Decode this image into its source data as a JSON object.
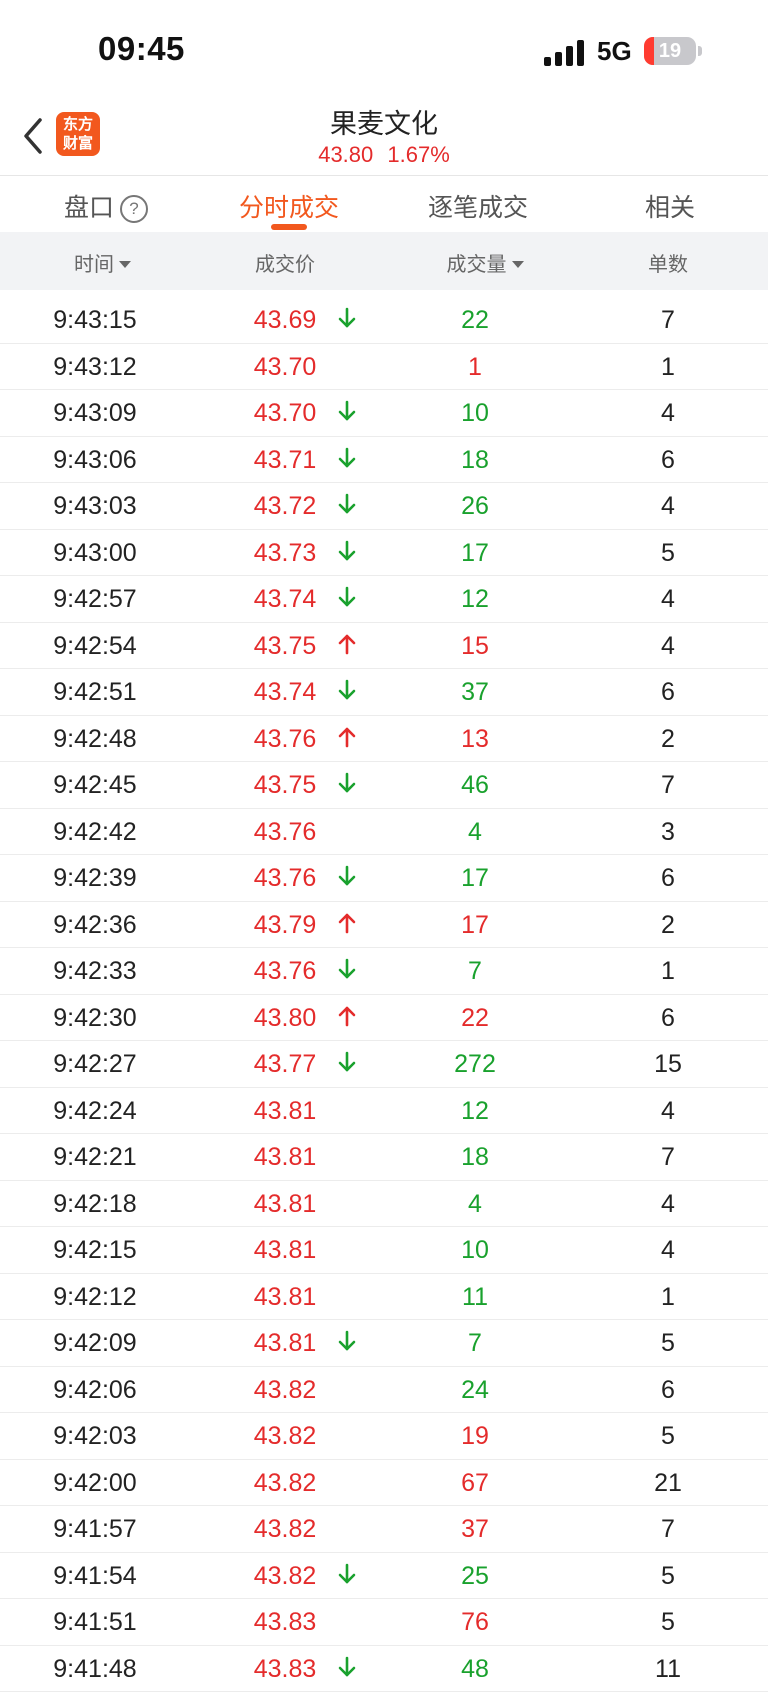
{
  "status_bar": {
    "time": "09:45",
    "network": "5G",
    "battery": "19",
    "battery_level": 0.19
  },
  "header": {
    "title": "果麦文化",
    "price": "43.80",
    "change_pct": "1.67%",
    "logo_line1": "东方",
    "logo_line2": "财富"
  },
  "tabs": [
    {
      "label": "盘口",
      "active": false
    },
    {
      "label": "分时成交",
      "active": true
    },
    {
      "label": "逐笔成交",
      "active": false
    },
    {
      "label": "相关",
      "active": false
    }
  ],
  "columns": [
    "时间",
    "成交价",
    "成交量",
    "单数"
  ],
  "colors": {
    "up": "#e42b2b",
    "down": "#19a12d",
    "accent": "#f2581e"
  },
  "trades": [
    {
      "time": "9:43:15",
      "price": "43.69",
      "dir": "down",
      "volume": "22",
      "count": "7"
    },
    {
      "time": "9:43:12",
      "price": "43.70",
      "dir": "",
      "volume": "1",
      "vol_color": "red",
      "count": "1"
    },
    {
      "time": "9:43:09",
      "price": "43.70",
      "dir": "down",
      "volume": "10",
      "count": "4"
    },
    {
      "time": "9:43:06",
      "price": "43.71",
      "dir": "down",
      "volume": "18",
      "count": "6"
    },
    {
      "time": "9:43:03",
      "price": "43.72",
      "dir": "down",
      "volume": "26",
      "count": "4"
    },
    {
      "time": "9:43:00",
      "price": "43.73",
      "dir": "down",
      "volume": "17",
      "count": "5"
    },
    {
      "time": "9:42:57",
      "price": "43.74",
      "dir": "down",
      "volume": "12",
      "count": "4"
    },
    {
      "time": "9:42:54",
      "price": "43.75",
      "dir": "up",
      "volume": "15",
      "count": "4"
    },
    {
      "time": "9:42:51",
      "price": "43.74",
      "dir": "down",
      "volume": "37",
      "count": "6"
    },
    {
      "time": "9:42:48",
      "price": "43.76",
      "dir": "up",
      "volume": "13",
      "count": "2"
    },
    {
      "time": "9:42:45",
      "price": "43.75",
      "dir": "down",
      "volume": "46",
      "count": "7"
    },
    {
      "time": "9:42:42",
      "price": "43.76",
      "dir": "",
      "volume": "4",
      "vol_color": "green",
      "count": "3"
    },
    {
      "time": "9:42:39",
      "price": "43.76",
      "dir": "down",
      "volume": "17",
      "count": "6"
    },
    {
      "time": "9:42:36",
      "price": "43.79",
      "dir": "up",
      "volume": "17",
      "count": "2"
    },
    {
      "time": "9:42:33",
      "price": "43.76",
      "dir": "down",
      "volume": "7",
      "count": "1"
    },
    {
      "time": "9:42:30",
      "price": "43.80",
      "dir": "up",
      "volume": "22",
      "count": "6"
    },
    {
      "time": "9:42:27",
      "price": "43.77",
      "dir": "down",
      "volume": "272",
      "count": "15"
    },
    {
      "time": "9:42:24",
      "price": "43.81",
      "dir": "",
      "volume": "12",
      "vol_color": "green",
      "count": "4"
    },
    {
      "time": "9:42:21",
      "price": "43.81",
      "dir": "",
      "volume": "18",
      "vol_color": "green",
      "count": "7"
    },
    {
      "time": "9:42:18",
      "price": "43.81",
      "dir": "",
      "volume": "4",
      "vol_color": "green",
      "count": "4"
    },
    {
      "time": "9:42:15",
      "price": "43.81",
      "dir": "",
      "volume": "10",
      "vol_color": "green",
      "count": "4"
    },
    {
      "time": "9:42:12",
      "price": "43.81",
      "dir": "",
      "volume": "11",
      "vol_color": "green",
      "count": "1"
    },
    {
      "time": "9:42:09",
      "price": "43.81",
      "dir": "down",
      "volume": "7",
      "count": "5"
    },
    {
      "time": "9:42:06",
      "price": "43.82",
      "dir": "",
      "volume": "24",
      "vol_color": "green",
      "count": "6"
    },
    {
      "time": "9:42:03",
      "price": "43.82",
      "dir": "",
      "volume": "19",
      "vol_color": "red",
      "count": "5"
    },
    {
      "time": "9:42:00",
      "price": "43.82",
      "dir": "",
      "volume": "67",
      "vol_color": "red",
      "count": "21"
    },
    {
      "time": "9:41:57",
      "price": "43.82",
      "dir": "",
      "volume": "37",
      "vol_color": "red",
      "count": "7"
    },
    {
      "time": "9:41:54",
      "price": "43.82",
      "dir": "down",
      "volume": "25",
      "count": "5"
    },
    {
      "time": "9:41:51",
      "price": "43.83",
      "dir": "",
      "volume": "76",
      "vol_color": "red",
      "count": "5"
    },
    {
      "time": "9:41:48",
      "price": "43.83",
      "dir": "down",
      "volume": "48",
      "count": "11"
    }
  ]
}
